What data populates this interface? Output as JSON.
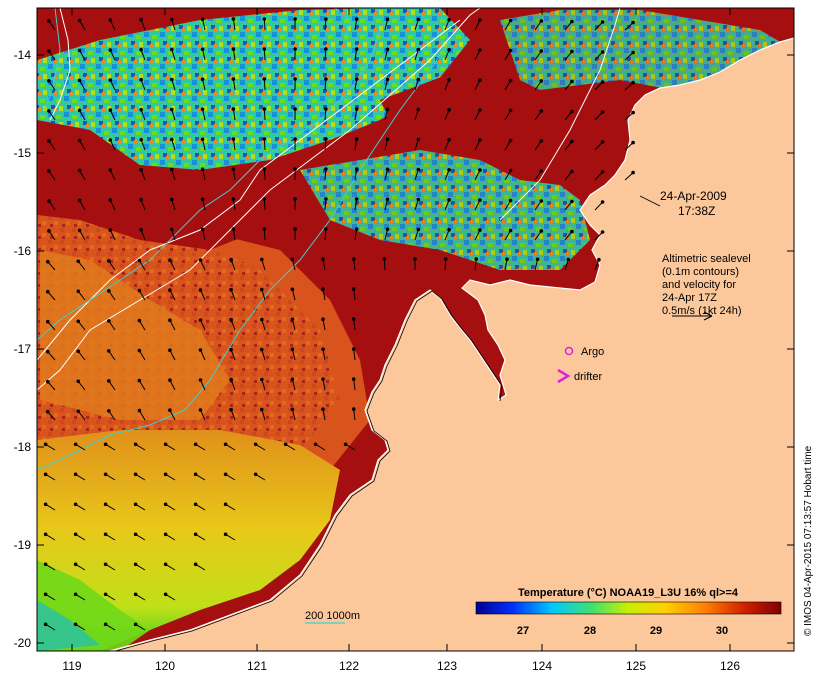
{
  "map": {
    "date_line1": "24-Apr-2009",
    "date_line2": "17:38Z",
    "altimetry_lines": [
      "Altimetric sealevel",
      "(0.1m contours)",
      "and velocity for",
      "24-Apr 17Z",
      "0.5m/s (1kt 24h)"
    ],
    "legend_argo": "Argo",
    "legend_drifter": "drifter",
    "isobath_label": "200  1000m",
    "credit": "© IMOS 04-Apr-2015 07:13:57 Hobart time",
    "x_ticks": [
      "119",
      "120",
      "121",
      "122",
      "123",
      "124",
      "125",
      "126"
    ],
    "y_ticks": [
      "-14",
      "-15",
      "-16",
      "-17",
      "-18",
      "-19",
      "-20"
    ],
    "colorbar_title": "Temperature (°C) NOAA19_L3U 16% ql>=4",
    "colorbar_ticks": [
      "27",
      "28",
      "29",
      "30"
    ],
    "colors": {
      "land": "#fcc89b",
      "ocean_hot": "#a50f0f",
      "ocean_warm": "#d9531c",
      "ocean_mid": "#e8a21a",
      "ocean_yellow": "#e6e21c",
      "ocean_green": "#5ed414",
      "ocean_cyan": "#22b7d2",
      "ocean_blue": "#1a4ec8",
      "argo": "#e020e0",
      "isobath": "#40d0d0",
      "contour": "#ffffff"
    },
    "colorbar_stops": [
      "#00008f",
      "#0030ff",
      "#00c8ff",
      "#40e070",
      "#c8f000",
      "#ffd000",
      "#ff8000",
      "#d02000",
      "#800000"
    ]
  }
}
